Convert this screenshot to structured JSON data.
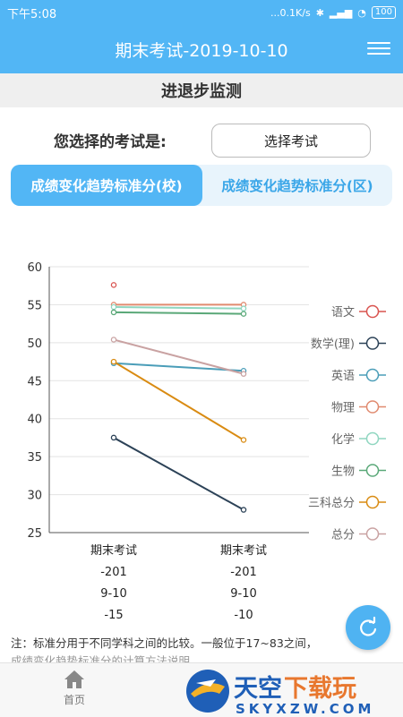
{
  "status": {
    "time": "下午5:08",
    "speed": "...0.1K/s",
    "battery": "100"
  },
  "header": {
    "title": "期末考试-2019-10-10"
  },
  "section": {
    "title": "进退步监测"
  },
  "exam_select": {
    "label": "您选择的考试是:",
    "button": "选择考试"
  },
  "tabs": [
    {
      "label": "成绩变化趋势标准分(校)",
      "active": true
    },
    {
      "label": "成绩变化趋势标准分(区)",
      "active": false
    }
  ],
  "chart_data": {
    "type": "line",
    "ylim": [
      25,
      60
    ],
    "yticks": [
      "60",
      "55",
      "50",
      "45",
      "40",
      "35",
      "30",
      "25"
    ],
    "categories": [
      {
        "lines": [
          "期末考试",
          "-201",
          "9-10",
          "-15"
        ]
      },
      {
        "lines": [
          "期末考试",
          "-201",
          "9-10",
          "-10"
        ]
      }
    ],
    "series": [
      {
        "name": "语文",
        "color": "#d9534f",
        "values": [
          57.6,
          null
        ]
      },
      {
        "name": "数学(理)",
        "color": "#2c4257",
        "values": [
          37.5,
          28.0
        ]
      },
      {
        "name": "英语",
        "color": "#4a9db8",
        "values": [
          47.3,
          46.3
        ]
      },
      {
        "name": "物理",
        "color": "#e08a6f",
        "values": [
          55.0,
          55.0
        ]
      },
      {
        "name": "化学",
        "color": "#8fd6c0",
        "values": [
          54.7,
          54.5
        ]
      },
      {
        "name": "生物",
        "color": "#5aa878",
        "values": [
          54.0,
          53.8
        ]
      },
      {
        "name": "三科总分",
        "color": "#d98b12",
        "values": [
          47.5,
          37.2
        ]
      },
      {
        "name": "总分",
        "color": "#c9a2a2",
        "values": [
          50.4,
          45.9
        ]
      }
    ],
    "legend_position": "right",
    "grid": "horizontal"
  },
  "note": {
    "text": "注：标准分用于不同学科之间的比较。一般位于17~83之间，",
    "text2": "成绩变化趋势标准分的计算方法说明"
  },
  "bottom_nav": {
    "home": "首页"
  },
  "watermark": {
    "cn": "天空下载玩",
    "en": "SKYXZW.COM"
  }
}
